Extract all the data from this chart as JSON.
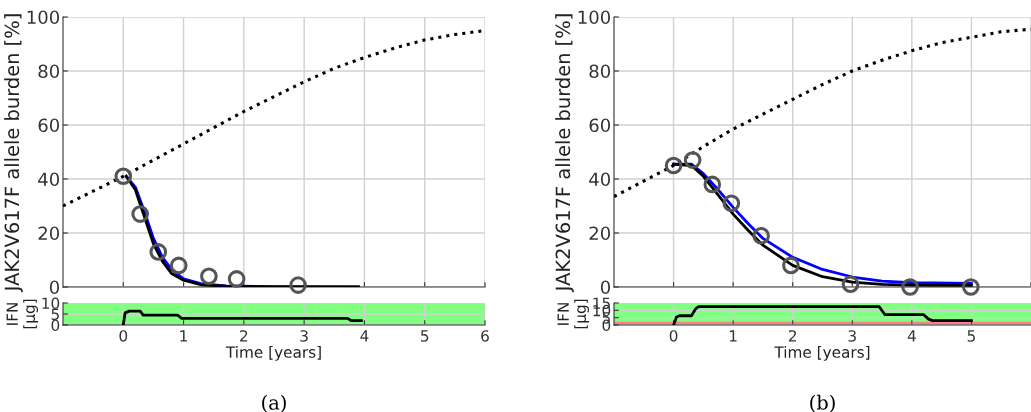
{
  "chart_data": [
    {
      "type": "line",
      "ylabel": "JAK2V617F allele burden [%]",
      "xlim": [
        -1,
        6
      ],
      "ylim": [
        0,
        100
      ],
      "xticks": [
        0,
        1,
        2,
        3,
        4,
        5,
        6
      ],
      "yticks": [
        0,
        20,
        40,
        60,
        80,
        100
      ],
      "grid": true,
      "tick_labels": "y",
      "series": [
        {
          "type": "line",
          "line_style": "dotted",
          "color": "#000000",
          "x": [
            -1,
            0,
            0.5,
            1,
            1.5,
            2,
            2.5,
            3,
            3.5,
            4,
            4.5,
            5,
            5.5,
            6
          ],
          "values": [
            30,
            41,
            47,
            53,
            59,
            65,
            70.5,
            76,
            81,
            85,
            88.5,
            91.5,
            93.5,
            95
          ]
        },
        {
          "type": "line",
          "line_style": "solid",
          "color": "#0000ff",
          "x": [
            0.05,
            0.2,
            0.35,
            0.5,
            0.65,
            0.8,
            1,
            1.3,
            1.7,
            2.5,
            3.9
          ],
          "values": [
            41,
            37,
            28,
            18,
            11,
            6.5,
            3,
            1.2,
            0.4,
            0.1,
            0
          ]
        },
        {
          "type": "line",
          "line_style": "solid",
          "color": "#000000",
          "x": [
            0.05,
            0.2,
            0.35,
            0.5,
            0.65,
            0.8,
            1,
            1.3,
            1.7,
            2.5,
            3.9
          ],
          "values": [
            41,
            36,
            26,
            16,
            9.5,
            5,
            2.5,
            0.8,
            0.3,
            0,
            0
          ]
        },
        {
          "type": "scatter",
          "marker": "circle",
          "color": "#555555",
          "x": [
            0,
            0.28,
            0.58,
            0.92,
            1.42,
            1.88,
            2.9
          ],
          "values": [
            41,
            27,
            13,
            8,
            4,
            3,
            0.7
          ]
        }
      ]
    },
    {
      "type": "line",
      "ylabel": "IFN\n[µg]",
      "xlabel": "Time [years]",
      "xlim": [
        -1,
        6
      ],
      "ylim": [
        0,
        10
      ],
      "xticks": [
        0,
        1,
        2,
        3,
        4,
        5,
        6
      ],
      "yticks": [
        0,
        5,
        10
      ],
      "grid": true,
      "annotations": [
        "(a)"
      ],
      "bands": [
        {
          "axis": "y",
          "from": 0,
          "to": 10,
          "color": "#80ff80"
        }
      ],
      "series": [
        {
          "type": "line",
          "line_style": "solid",
          "color": "#000000",
          "x": [
            0,
            0.03,
            0.1,
            0.28,
            0.33,
            0.9,
            0.97,
            3.72,
            3.78,
            3.95
          ],
          "values": [
            0,
            5.5,
            6.3,
            6.3,
            4.5,
            4.5,
            3,
            3,
            2,
            2
          ]
        }
      ]
    },
    {
      "type": "line",
      "ylabel": "JAK2V617F allele burden [%]",
      "xlim": [
        -1,
        6
      ],
      "ylim": [
        0,
        100
      ],
      "xticks": [
        0,
        1,
        2,
        3,
        4,
        5,
        6
      ],
      "yticks": [
        0,
        20,
        40,
        60,
        80,
        100
      ],
      "grid": true,
      "tick_labels": "y",
      "series": [
        {
          "type": "line",
          "line_style": "dotted",
          "color": "#000000",
          "x": [
            -1,
            0,
            0.5,
            1,
            1.5,
            2,
            2.5,
            3,
            3.5,
            4,
            4.5,
            5,
            5.5,
            6
          ],
          "values": [
            33.5,
            45,
            52,
            58.5,
            64,
            69.5,
            75,
            80,
            84,
            87.5,
            90.5,
            92.5,
            94.5,
            95.5
          ]
        },
        {
          "type": "line",
          "line_style": "solid",
          "color": "#0000ff",
          "x": [
            0,
            0.3,
            0.5,
            0.75,
            1,
            1.25,
            1.5,
            2,
            2.5,
            3,
            3.5,
            4,
            5
          ],
          "values": [
            45.5,
            45.5,
            42,
            36,
            29.5,
            23.5,
            18,
            11,
            6.5,
            3.7,
            2.2,
            1.6,
            1.3
          ]
        },
        {
          "type": "line",
          "line_style": "solid",
          "color": "#000000",
          "x": [
            0,
            0.3,
            0.5,
            0.75,
            1,
            1.25,
            1.5,
            2,
            2.5,
            3,
            3.5,
            4,
            5
          ],
          "values": [
            45.5,
            45,
            41,
            34,
            27,
            21,
            15.5,
            8,
            3.8,
            1.8,
            1,
            0.7,
            0.6
          ]
        },
        {
          "type": "scatter",
          "marker": "circle",
          "color": "#555555",
          "x": [
            0,
            0.32,
            0.65,
            0.97,
            1.47,
            1.97,
            2.97,
            3.97,
            4.99
          ],
          "values": [
            45,
            47,
            38,
            31,
            19,
            8,
            1,
            0,
            0
          ]
        }
      ]
    },
    {
      "type": "line",
      "ylabel": "IFN\n[µg]",
      "xlabel": "Time [years]",
      "xlim": [
        -1,
        6
      ],
      "ylim": [
        0,
        15
      ],
      "xticks": [
        0,
        1,
        2,
        3,
        4,
        5
      ],
      "yticks": [
        0,
        5,
        10,
        15
      ],
      "grid": true,
      "annotations": [
        "(b)"
      ],
      "bands": [
        {
          "axis": "y",
          "from": 0,
          "to": 2.5,
          "color": "#ff8080"
        },
        {
          "axis": "y",
          "from": 2.5,
          "to": 15,
          "color": "#80ff80"
        }
      ],
      "series": [
        {
          "type": "line",
          "line_style": "solid",
          "color": "#000000",
          "x": [
            0,
            0.05,
            0.1,
            0.3,
            0.37,
            0.42,
            3.45,
            3.55,
            4.2,
            4.28,
            4.35,
            5
          ],
          "values": [
            0,
            5.5,
            6.3,
            6.3,
            11,
            12.5,
            12.5,
            7,
            7,
            4,
            3,
            3
          ]
        }
      ]
    }
  ]
}
